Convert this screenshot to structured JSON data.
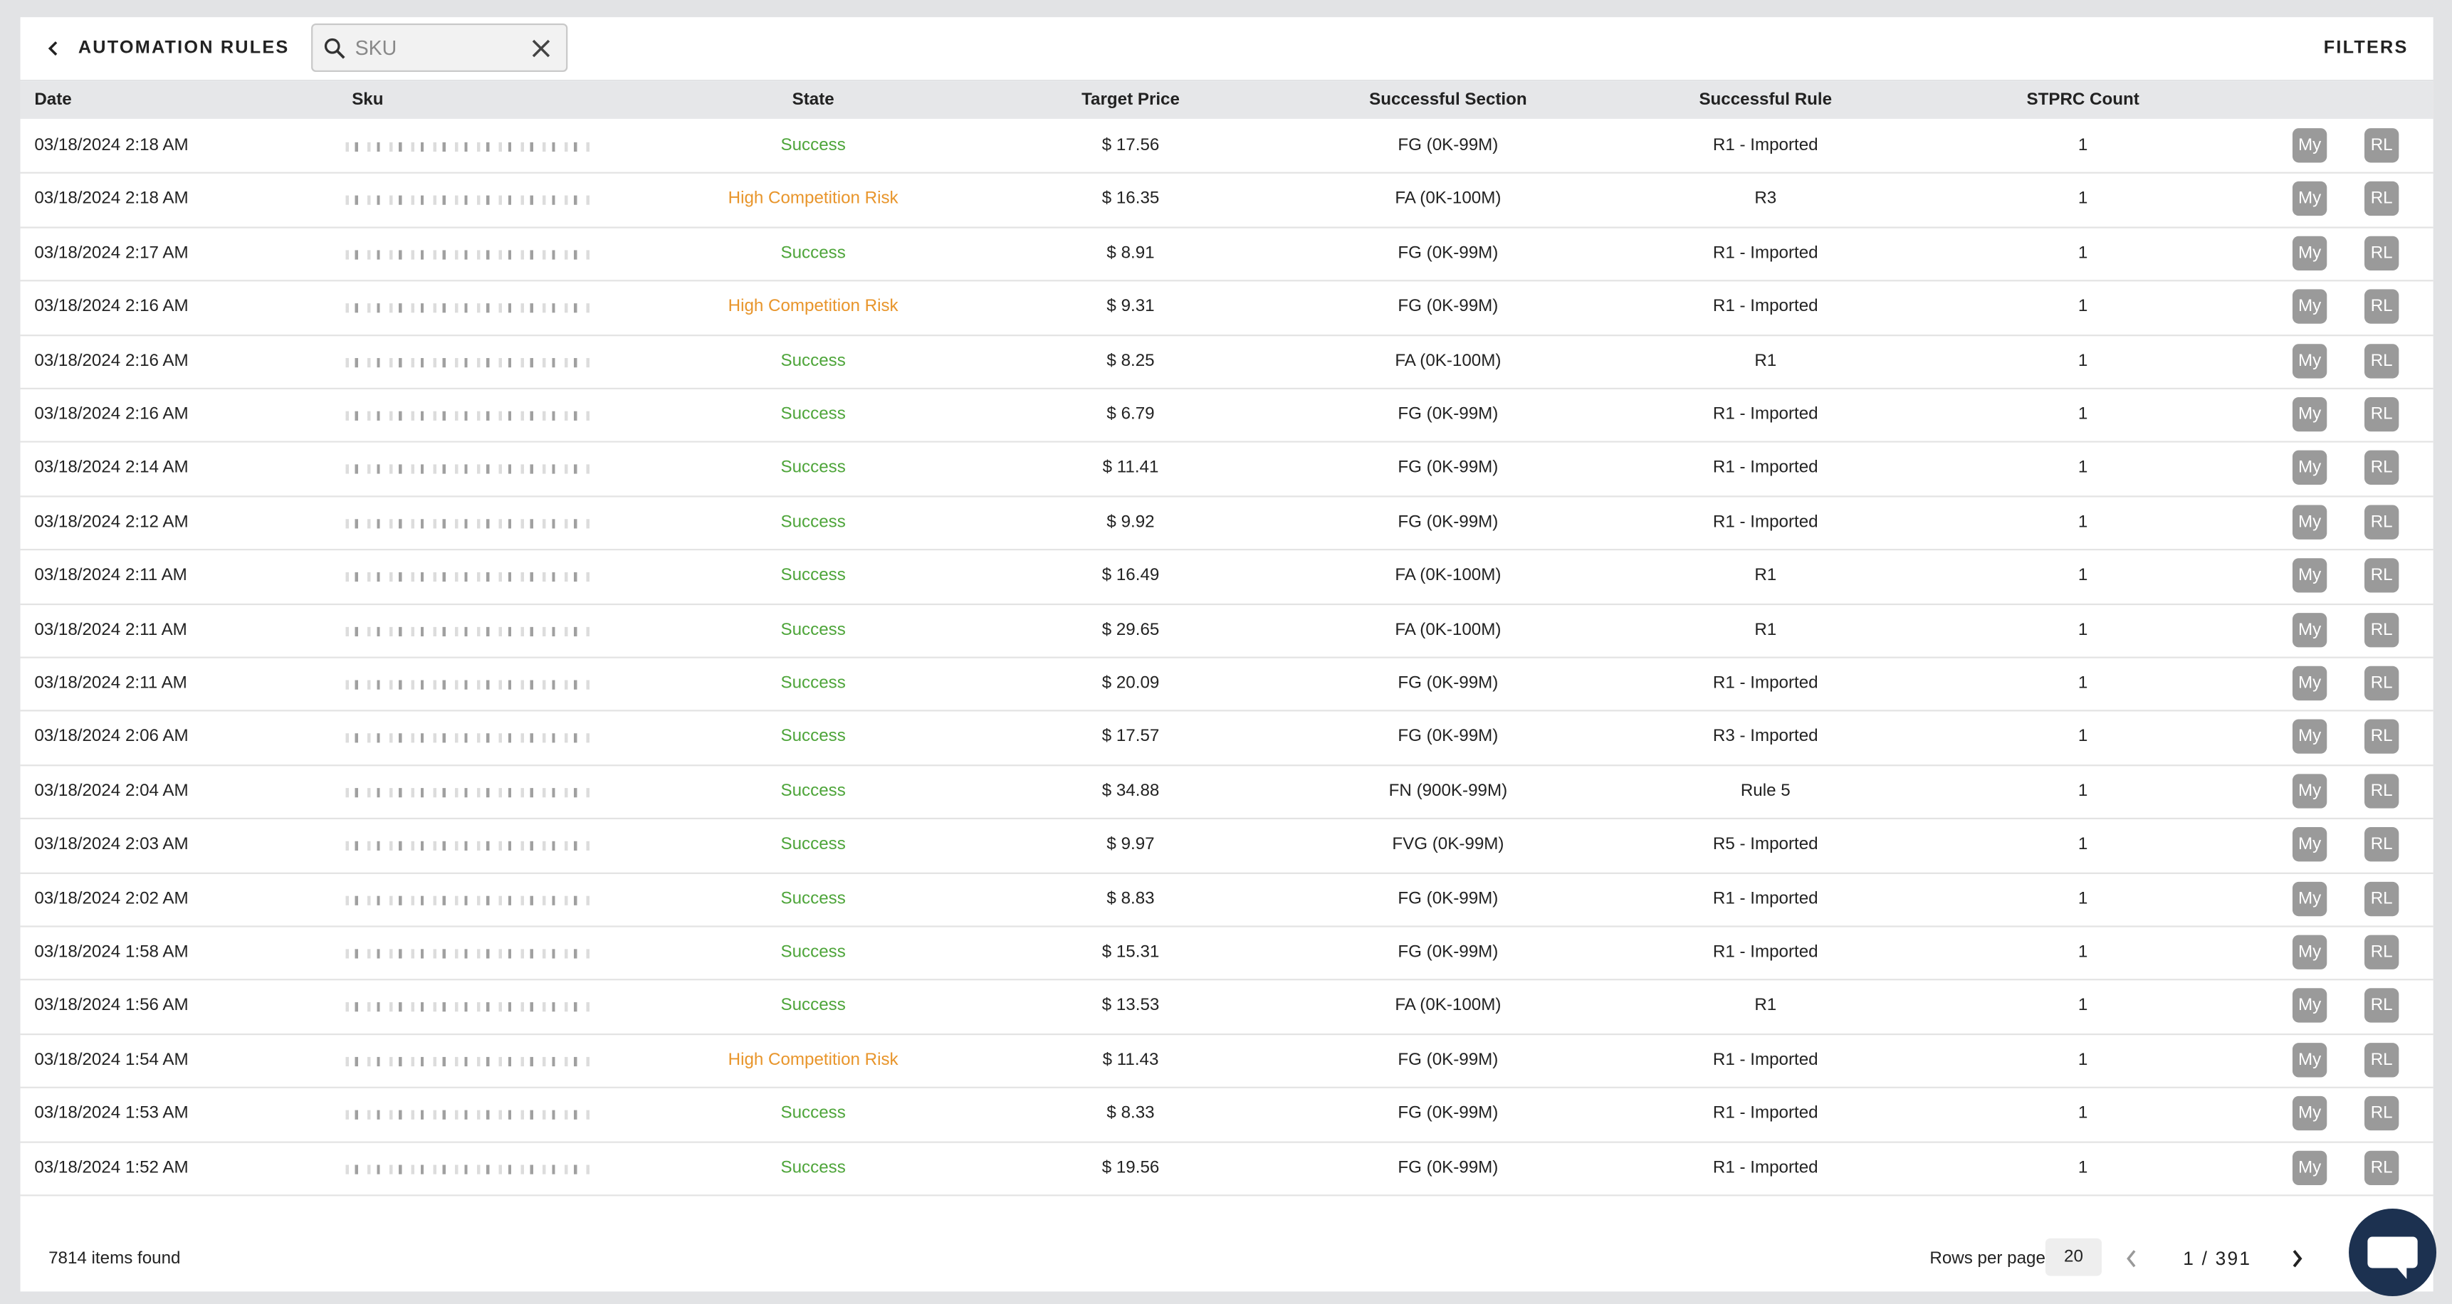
{
  "header": {
    "title": "AUTOMATION RULES",
    "search_placeholder": "SKU",
    "filters": "FILTERS"
  },
  "table": {
    "columns": [
      "Date",
      "Sku",
      "State",
      "Target Price",
      "Successful Section",
      "Successful Rule",
      "STPRC Count"
    ],
    "row_actions": [
      "My",
      "RL"
    ],
    "rows": [
      {
        "date": "03/18/2024 2:18 AM",
        "state": "Success",
        "price": "$ 17.56",
        "section": "FG (0K-99M)",
        "rule": "R1 - Imported",
        "count": "1"
      },
      {
        "date": "03/18/2024 2:18 AM",
        "state": "High Competition Risk",
        "price": "$ 16.35",
        "section": "FA (0K-100M)",
        "rule": "R3",
        "count": "1"
      },
      {
        "date": "03/18/2024 2:17 AM",
        "state": "Success",
        "price": "$ 8.91",
        "section": "FG (0K-99M)",
        "rule": "R1 - Imported",
        "count": "1"
      },
      {
        "date": "03/18/2024 2:16 AM",
        "state": "High Competition Risk",
        "price": "$ 9.31",
        "section": "FG (0K-99M)",
        "rule": "R1 - Imported",
        "count": "1"
      },
      {
        "date": "03/18/2024 2:16 AM",
        "state": "Success",
        "price": "$ 8.25",
        "section": "FA (0K-100M)",
        "rule": "R1",
        "count": "1"
      },
      {
        "date": "03/18/2024 2:16 AM",
        "state": "Success",
        "price": "$ 6.79",
        "section": "FG (0K-99M)",
        "rule": "R1 - Imported",
        "count": "1"
      },
      {
        "date": "03/18/2024 2:14 AM",
        "state": "Success",
        "price": "$ 11.41",
        "section": "FG (0K-99M)",
        "rule": "R1 - Imported",
        "count": "1"
      },
      {
        "date": "03/18/2024 2:12 AM",
        "state": "Success",
        "price": "$ 9.92",
        "section": "FG (0K-99M)",
        "rule": "R1 - Imported",
        "count": "1"
      },
      {
        "date": "03/18/2024 2:11 AM",
        "state": "Success",
        "price": "$ 16.49",
        "section": "FA (0K-100M)",
        "rule": "R1",
        "count": "1"
      },
      {
        "date": "03/18/2024 2:11 AM",
        "state": "Success",
        "price": "$ 29.65",
        "section": "FA (0K-100M)",
        "rule": "R1",
        "count": "1"
      },
      {
        "date": "03/18/2024 2:11 AM",
        "state": "Success",
        "price": "$ 20.09",
        "section": "FG (0K-99M)",
        "rule": "R1 - Imported",
        "count": "1"
      },
      {
        "date": "03/18/2024 2:06 AM",
        "state": "Success",
        "price": "$ 17.57",
        "section": "FG (0K-99M)",
        "rule": "R3 - Imported",
        "count": "1"
      },
      {
        "date": "03/18/2024 2:04 AM",
        "state": "Success",
        "price": "$ 34.88",
        "section": "FN (900K-99M)",
        "rule": "Rule 5",
        "count": "1"
      },
      {
        "date": "03/18/2024 2:03 AM",
        "state": "Success",
        "price": "$ 9.97",
        "section": "FVG (0K-99M)",
        "rule": "R5 - Imported",
        "count": "1"
      },
      {
        "date": "03/18/2024 2:02 AM",
        "state": "Success",
        "price": "$ 8.83",
        "section": "FG (0K-99M)",
        "rule": "R1 - Imported",
        "count": "1"
      },
      {
        "date": "03/18/2024 1:58 AM",
        "state": "Success",
        "price": "$ 15.31",
        "section": "FG (0K-99M)",
        "rule": "R1 - Imported",
        "count": "1"
      },
      {
        "date": "03/18/2024 1:56 AM",
        "state": "Success",
        "price": "$ 13.53",
        "section": "FA (0K-100M)",
        "rule": "R1",
        "count": "1"
      },
      {
        "date": "03/18/2024 1:54 AM",
        "state": "High Competition Risk",
        "price": "$ 11.43",
        "section": "FG (0K-99M)",
        "rule": "R1 - Imported",
        "count": "1"
      },
      {
        "date": "03/18/2024 1:53 AM",
        "state": "Success",
        "price": "$ 8.33",
        "section": "FG (0K-99M)",
        "rule": "R1 - Imported",
        "count": "1"
      },
      {
        "date": "03/18/2024 1:52 AM",
        "state": "Success",
        "price": "$ 19.56",
        "section": "FG (0K-99M)",
        "rule": "R1 - Imported",
        "count": "1"
      }
    ]
  },
  "footer": {
    "items_found": "7814 items found",
    "rows_per_page_label": "Rows per page",
    "rows_per_page": "20",
    "page": "1 / 391"
  }
}
